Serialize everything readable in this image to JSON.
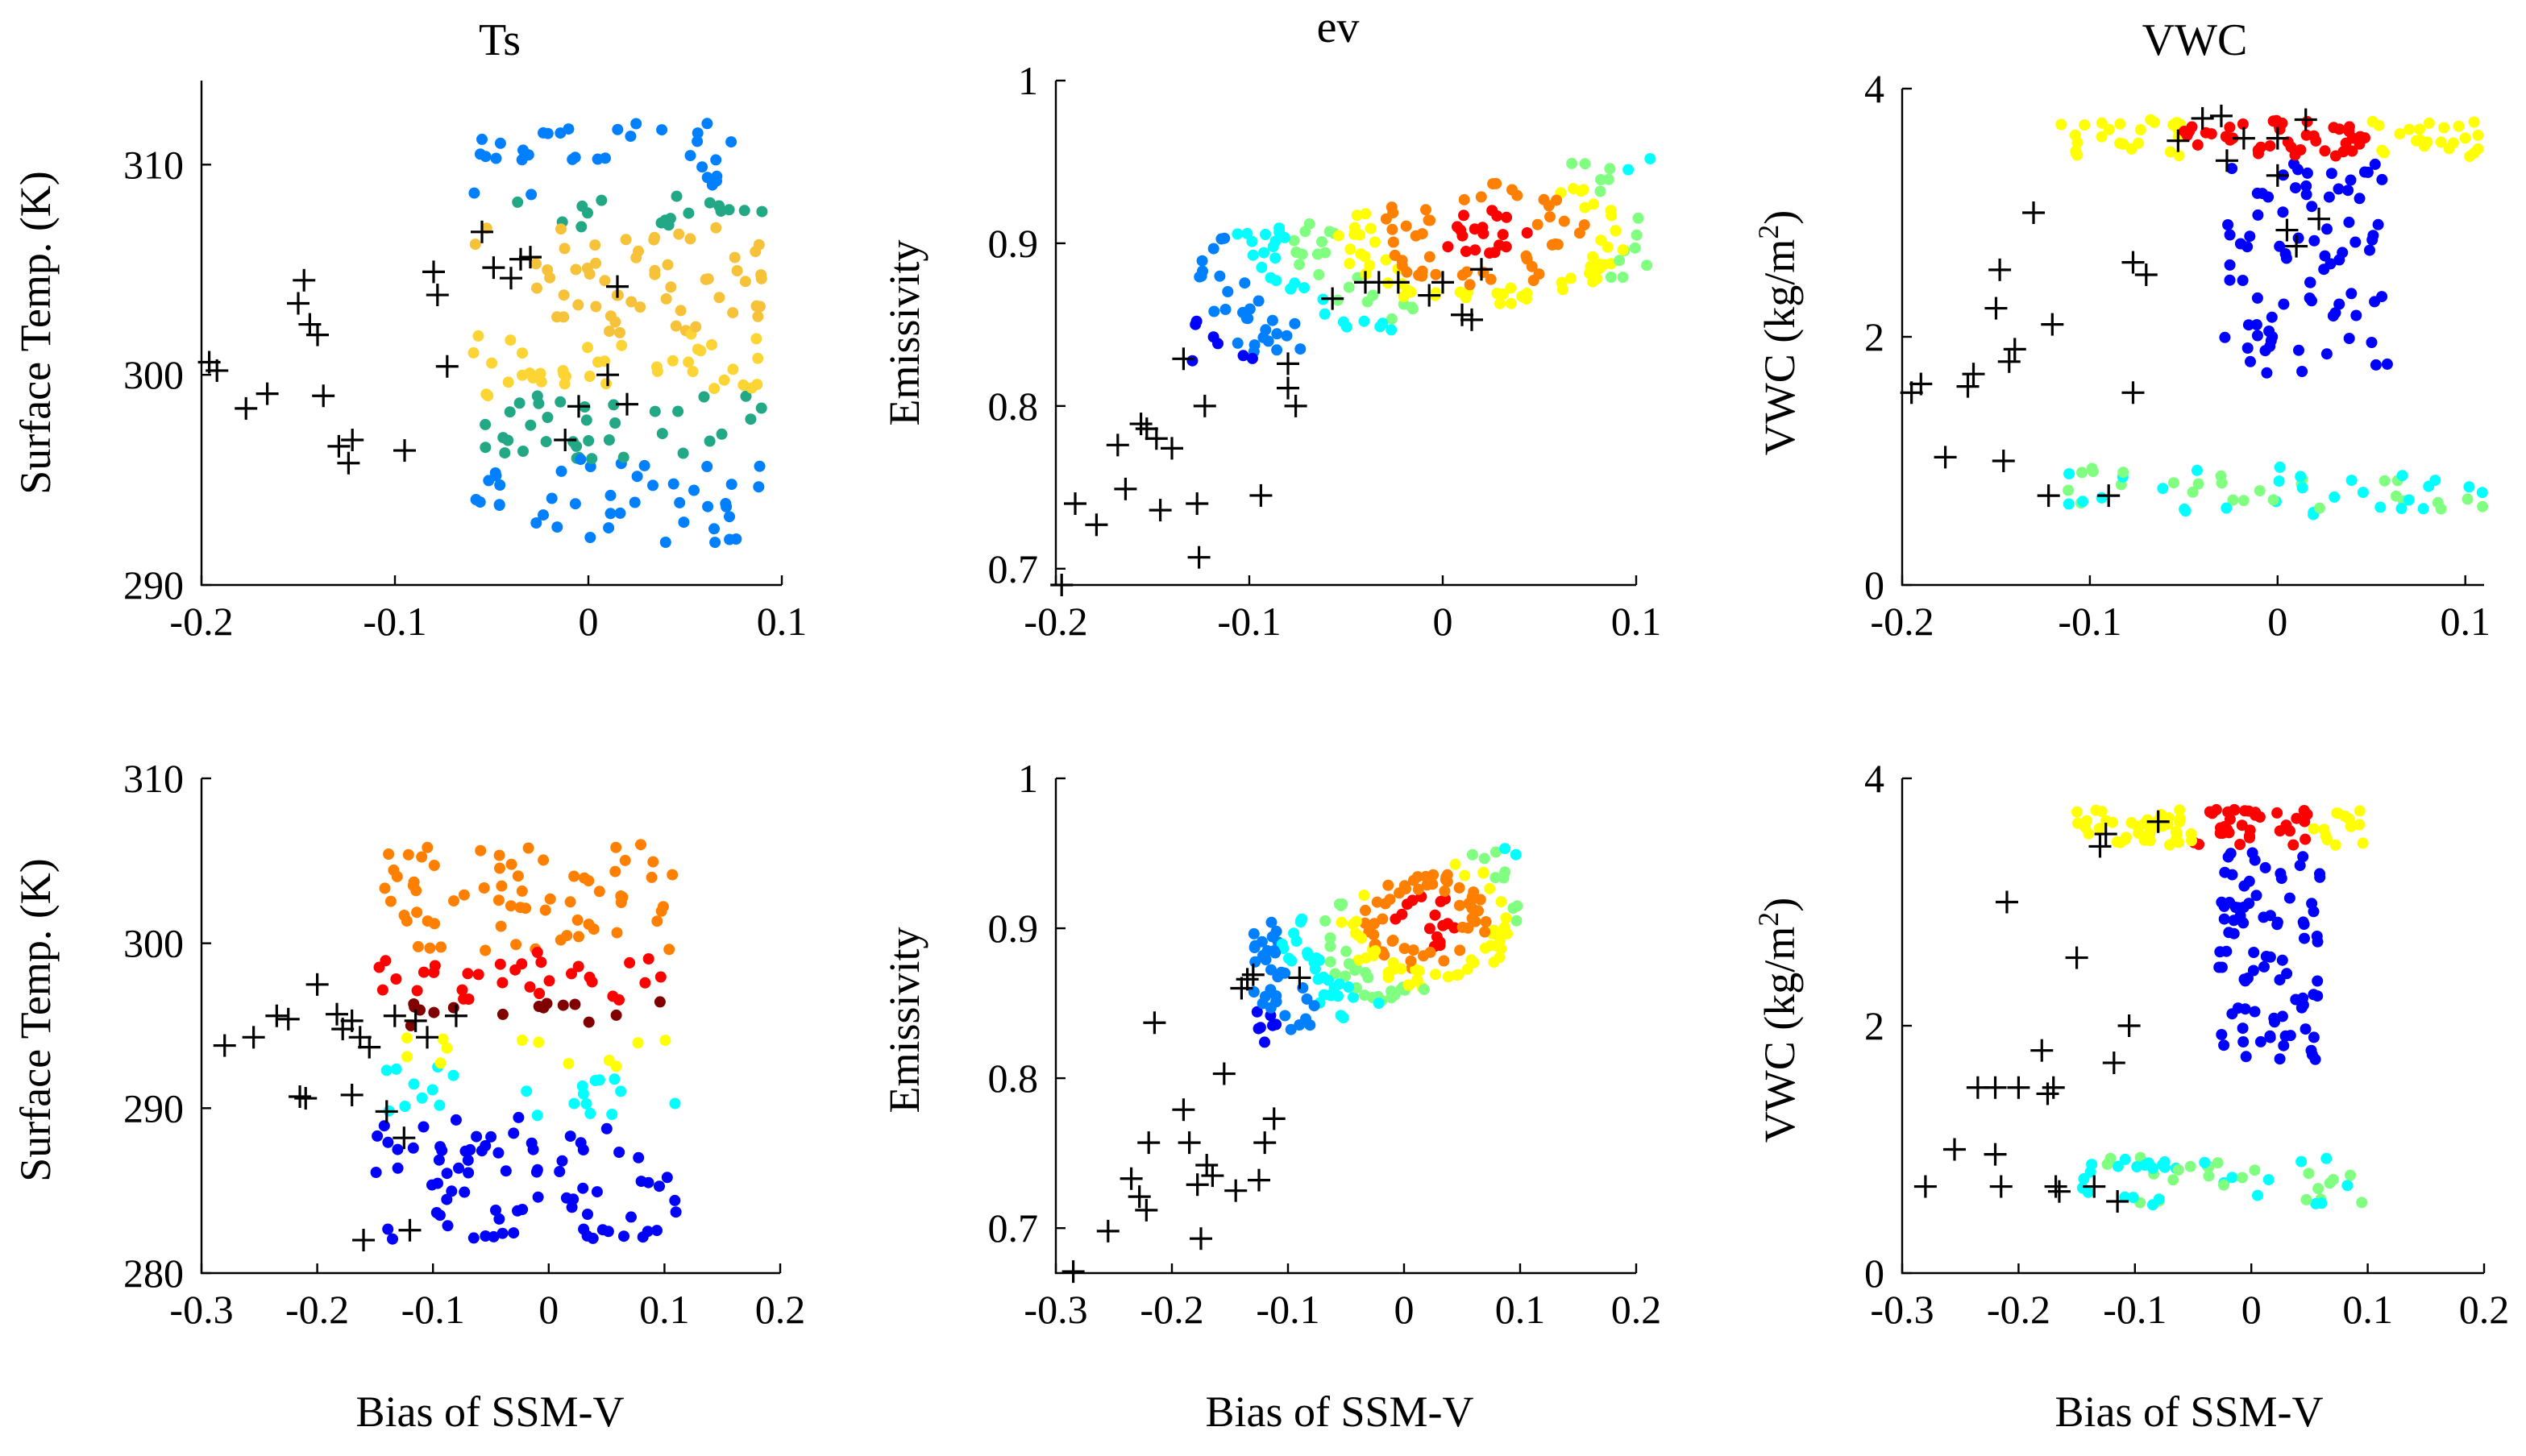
{
  "figure": {
    "xlabel": "Bias of SSM-V",
    "colormap": [
      "#00008f",
      "#0000ff",
      "#0080ff",
      "#00ffff",
      "#80ff80",
      "#ffff00",
      "#ff8000",
      "#ff0000",
      "#800000"
    ]
  },
  "chart_data": [
    {
      "id": "ts-top",
      "type": "scatter",
      "title": "Ts",
      "xlabel": "",
      "ylabel": "Surface Temp. (K)",
      "xlim": [
        -0.2,
        0.1
      ],
      "ylim": [
        290,
        314
      ],
      "xticks": [
        -0.2,
        -0.1,
        0,
        0.1
      ],
      "yticks": [
        290,
        300,
        310
      ],
      "xtick_labels": [
        "-0.2",
        "-0.1",
        "0",
        "0.1"
      ],
      "ytick_labels": [
        "290",
        "300",
        "310"
      ],
      "cluster": {
        "x": [
          -0.06,
          0.09
        ],
        "y": [
          292,
          312
        ],
        "color_note": "mostly yellow/orange and teal, few blue"
      },
      "crosses": [
        [
          -0.196,
          300.6
        ],
        [
          -0.192,
          300.2
        ],
        [
          -0.177,
          298.4
        ],
        [
          -0.166,
          299.1
        ],
        [
          -0.147,
          304.5
        ],
        [
          -0.15,
          303.4
        ],
        [
          -0.144,
          302.4
        ],
        [
          -0.14,
          301.9
        ],
        [
          -0.137,
          299.0
        ],
        [
          -0.129,
          296.6
        ],
        [
          -0.124,
          295.8
        ],
        [
          -0.122,
          296.9
        ],
        [
          -0.095,
          296.4
        ],
        [
          -0.08,
          304.9
        ],
        [
          -0.078,
          303.8
        ],
        [
          -0.073,
          300.4
        ],
        [
          -0.055,
          306.8
        ],
        [
          -0.049,
          305.1
        ],
        [
          -0.04,
          304.6
        ],
        [
          -0.035,
          305.5
        ],
        [
          -0.03,
          305.6
        ],
        [
          -0.012,
          296.9
        ],
        [
          -0.005,
          298.5
        ],
        [
          0.01,
          300.0
        ],
        [
          0.015,
          304.2
        ],
        [
          0.02,
          298.6
        ]
      ]
    },
    {
      "id": "ev-top",
      "type": "scatter",
      "title": "ev",
      "xlabel": "",
      "ylabel": "Emissivity",
      "xlim": [
        -0.2,
        0.1
      ],
      "ylim": [
        0.69,
        1.0
      ],
      "xticks": [
        -0.2,
        -0.1,
        0,
        0.1
      ],
      "yticks": [
        0.7,
        0.8,
        0.9,
        1.0
      ],
      "xtick_labels": [
        "-0.2",
        "-0.1",
        "0",
        "0.1"
      ],
      "ytick_labels": [
        "0.7",
        "0.8",
        "0.9",
        "1"
      ],
      "cluster": {
        "x": [
          -0.13,
          0.11
        ],
        "y": [
          0.79,
          0.95
        ],
        "color_note": "dense red/yellow core near (0.02, 0.90)"
      },
      "crosses": [
        [
          -0.197,
          0.69
        ],
        [
          -0.19,
          0.74
        ],
        [
          -0.179,
          0.727
        ],
        [
          -0.168,
          0.776
        ],
        [
          -0.164,
          0.749
        ],
        [
          -0.156,
          0.789
        ],
        [
          -0.153,
          0.786
        ],
        [
          -0.148,
          0.78
        ],
        [
          -0.146,
          0.736
        ],
        [
          -0.14,
          0.774
        ],
        [
          -0.134,
          0.829
        ],
        [
          -0.127,
          0.74
        ],
        [
          -0.126,
          0.707
        ],
        [
          -0.123,
          0.8
        ],
        [
          -0.094,
          0.745
        ],
        [
          -0.08,
          0.826
        ],
        [
          -0.08,
          0.811
        ],
        [
          -0.076,
          0.8
        ],
        [
          -0.057,
          0.866
        ],
        [
          -0.04,
          0.876
        ],
        [
          -0.033,
          0.876
        ],
        [
          -0.023,
          0.876
        ],
        [
          -0.007,
          0.868
        ],
        [
          0.0,
          0.876
        ],
        [
          0.01,
          0.856
        ],
        [
          0.015,
          0.853
        ],
        [
          0.02,
          0.884
        ]
      ]
    },
    {
      "id": "vwc-top",
      "type": "scatter",
      "title": "VWC",
      "xlabel": "",
      "ylabel": "VWC (kg/m²)",
      "ylabel_main": "VWC (kg/m",
      "ylabel_sup": "2",
      "ylabel_close": ")",
      "xlim": [
        -0.2,
        0.11
      ],
      "ylim": [
        0,
        4
      ],
      "xticks": [
        -0.2,
        -0.1,
        0,
        0.1
      ],
      "yticks": [
        0,
        2,
        4
      ],
      "xtick_labels": [
        "-0.2",
        "-0.1",
        "0",
        "0.1"
      ],
      "ytick_labels": [
        "0",
        "2",
        "4"
      ],
      "cluster": {
        "x": [
          -0.12,
          0.11
        ],
        "y": [
          0.5,
          3.8
        ],
        "color_note": "red band at top, blue middle, cyan/green band near 0.7"
      },
      "crosses": [
        [
          -0.195,
          1.55
        ],
        [
          -0.19,
          1.62
        ],
        [
          -0.177,
          1.03
        ],
        [
          -0.165,
          1.6
        ],
        [
          -0.162,
          1.7
        ],
        [
          -0.15,
          2.23
        ],
        [
          -0.148,
          2.54
        ],
        [
          -0.146,
          1.0
        ],
        [
          -0.143,
          1.8
        ],
        [
          -0.14,
          1.9
        ],
        [
          -0.13,
          3.0
        ],
        [
          -0.122,
          0.72
        ],
        [
          -0.12,
          2.1
        ],
        [
          -0.09,
          0.72
        ],
        [
          -0.077,
          2.6
        ],
        [
          -0.077,
          1.55
        ],
        [
          -0.07,
          2.5
        ],
        [
          -0.053,
          3.58
        ],
        [
          -0.04,
          3.76
        ],
        [
          -0.03,
          3.78
        ],
        [
          -0.027,
          3.42
        ],
        [
          -0.018,
          3.6
        ],
        [
          0.0,
          3.6
        ],
        [
          0.0,
          3.3
        ],
        [
          0.005,
          2.86
        ],
        [
          0.01,
          2.73
        ],
        [
          0.015,
          3.75
        ],
        [
          0.022,
          2.95
        ]
      ]
    },
    {
      "id": "ts-bottom",
      "type": "scatter",
      "title": "",
      "xlabel": "Bias of SSM-V",
      "ylabel": "Surface Temp. (K)",
      "xlim": [
        -0.3,
        0.2
      ],
      "ylim": [
        280,
        310
      ],
      "xticks": [
        -0.3,
        -0.2,
        -0.1,
        0,
        0.1,
        0.2
      ],
      "yticks": [
        280,
        290,
        300,
        310
      ],
      "xtick_labels": [
        "-0.3",
        "-0.2",
        "-0.1",
        "0",
        "0.1",
        "0.2"
      ],
      "ytick_labels": [
        "280",
        "290",
        "300",
        "310"
      ],
      "cluster": {
        "x": [
          -0.15,
          0.11
        ],
        "y": [
          282,
          306
        ],
        "color_note": "dark red band near 295.5, orange/yellow above, cyan/blue below"
      },
      "crosses": [
        [
          -0.28,
          293.8
        ],
        [
          -0.255,
          294.3
        ],
        [
          -0.235,
          295.6
        ],
        [
          -0.225,
          295.4
        ],
        [
          -0.215,
          290.7
        ],
        [
          -0.21,
          290.6
        ],
        [
          -0.2,
          297.5
        ],
        [
          -0.183,
          295.7
        ],
        [
          -0.178,
          294.8
        ],
        [
          -0.17,
          295.3
        ],
        [
          -0.17,
          290.8
        ],
        [
          -0.163,
          294.3
        ],
        [
          -0.16,
          282.0
        ],
        [
          -0.155,
          293.7
        ],
        [
          -0.14,
          289.8
        ],
        [
          -0.133,
          295.6
        ],
        [
          -0.125,
          288.2
        ],
        [
          -0.12,
          282.6
        ],
        [
          -0.115,
          295.3
        ],
        [
          -0.105,
          294.3
        ],
        [
          -0.08,
          295.6
        ]
      ]
    },
    {
      "id": "ev-bottom",
      "type": "scatter",
      "title": "",
      "xlabel": "Bias of SSM-V",
      "ylabel": "Emissivity",
      "xlim": [
        -0.3,
        0.2
      ],
      "ylim": [
        0.67,
        1.0
      ],
      "xticks": [
        -0.3,
        -0.2,
        -0.1,
        0,
        0.1,
        0.2
      ],
      "yticks": [
        0.7,
        0.8,
        0.9,
        1.0
      ],
      "xtick_labels": [
        "-0.3",
        "-0.2",
        "-0.1",
        "0",
        "0.1",
        "0.2"
      ],
      "ytick_labels": [
        "0.7",
        "0.8",
        "0.9",
        "1"
      ],
      "cluster": {
        "x": [
          -0.13,
          0.1
        ],
        "y": [
          0.77,
          0.94
        ],
        "color_note": "red/orange core near (0.02, 0.91), green/cyan below"
      },
      "crosses": [
        [
          -0.285,
          0.671
        ],
        [
          -0.255,
          0.698
        ],
        [
          -0.235,
          0.733
        ],
        [
          -0.228,
          0.721
        ],
        [
          -0.222,
          0.712
        ],
        [
          -0.22,
          0.757
        ],
        [
          -0.215,
          0.837
        ],
        [
          -0.19,
          0.779
        ],
        [
          -0.185,
          0.757
        ],
        [
          -0.178,
          0.729
        ],
        [
          -0.175,
          0.693
        ],
        [
          -0.17,
          0.742
        ],
        [
          -0.165,
          0.735
        ],
        [
          -0.155,
          0.803
        ],
        [
          -0.145,
          0.725
        ],
        [
          -0.14,
          0.86
        ],
        [
          -0.135,
          0.866
        ],
        [
          -0.13,
          0.869
        ],
        [
          -0.125,
          0.732
        ],
        [
          -0.12,
          0.757
        ],
        [
          -0.112,
          0.773
        ],
        [
          -0.09,
          0.867
        ]
      ]
    },
    {
      "id": "vwc-bottom",
      "type": "scatter",
      "title": "",
      "xlabel": "Bias of SSM-V",
      "ylabel": "VWC (kg/m²)",
      "ylabel_main": "VWC (kg/m",
      "ylabel_sup": "2",
      "ylabel_close": ")",
      "xlim": [
        -0.3,
        0.2
      ],
      "ylim": [
        0,
        4
      ],
      "xticks": [
        -0.3,
        -0.2,
        -0.1,
        0,
        0.1,
        0.2
      ],
      "yticks": [
        0,
        2,
        4
      ],
      "xtick_labels": [
        "-0.3",
        "-0.2",
        "-0.1",
        "0",
        "0.1",
        "0.2"
      ],
      "ytick_labels": [
        "0",
        "2",
        "4"
      ],
      "cluster": {
        "x": [
          -0.15,
          0.1
        ],
        "y": [
          0.5,
          3.8
        ],
        "color_note": "red band near 3.55, blue middle, yellow/cyan band near 0.75"
      },
      "crosses": [
        [
          -0.28,
          0.7
        ],
        [
          -0.255,
          1.0
        ],
        [
          -0.235,
          1.5
        ],
        [
          -0.22,
          1.5
        ],
        [
          -0.22,
          0.96
        ],
        [
          -0.215,
          0.7
        ],
        [
          -0.21,
          3.0
        ],
        [
          -0.2,
          1.5
        ],
        [
          -0.18,
          1.8
        ],
        [
          -0.175,
          1.45
        ],
        [
          -0.17,
          1.5
        ],
        [
          -0.168,
          0.7
        ],
        [
          -0.165,
          0.66
        ],
        [
          -0.15,
          2.55
        ],
        [
          -0.135,
          0.7
        ],
        [
          -0.13,
          3.45
        ],
        [
          -0.125,
          3.55
        ],
        [
          -0.118,
          1.7
        ],
        [
          -0.115,
          0.58
        ],
        [
          -0.105,
          2.0
        ],
        [
          -0.08,
          3.65
        ]
      ]
    }
  ]
}
